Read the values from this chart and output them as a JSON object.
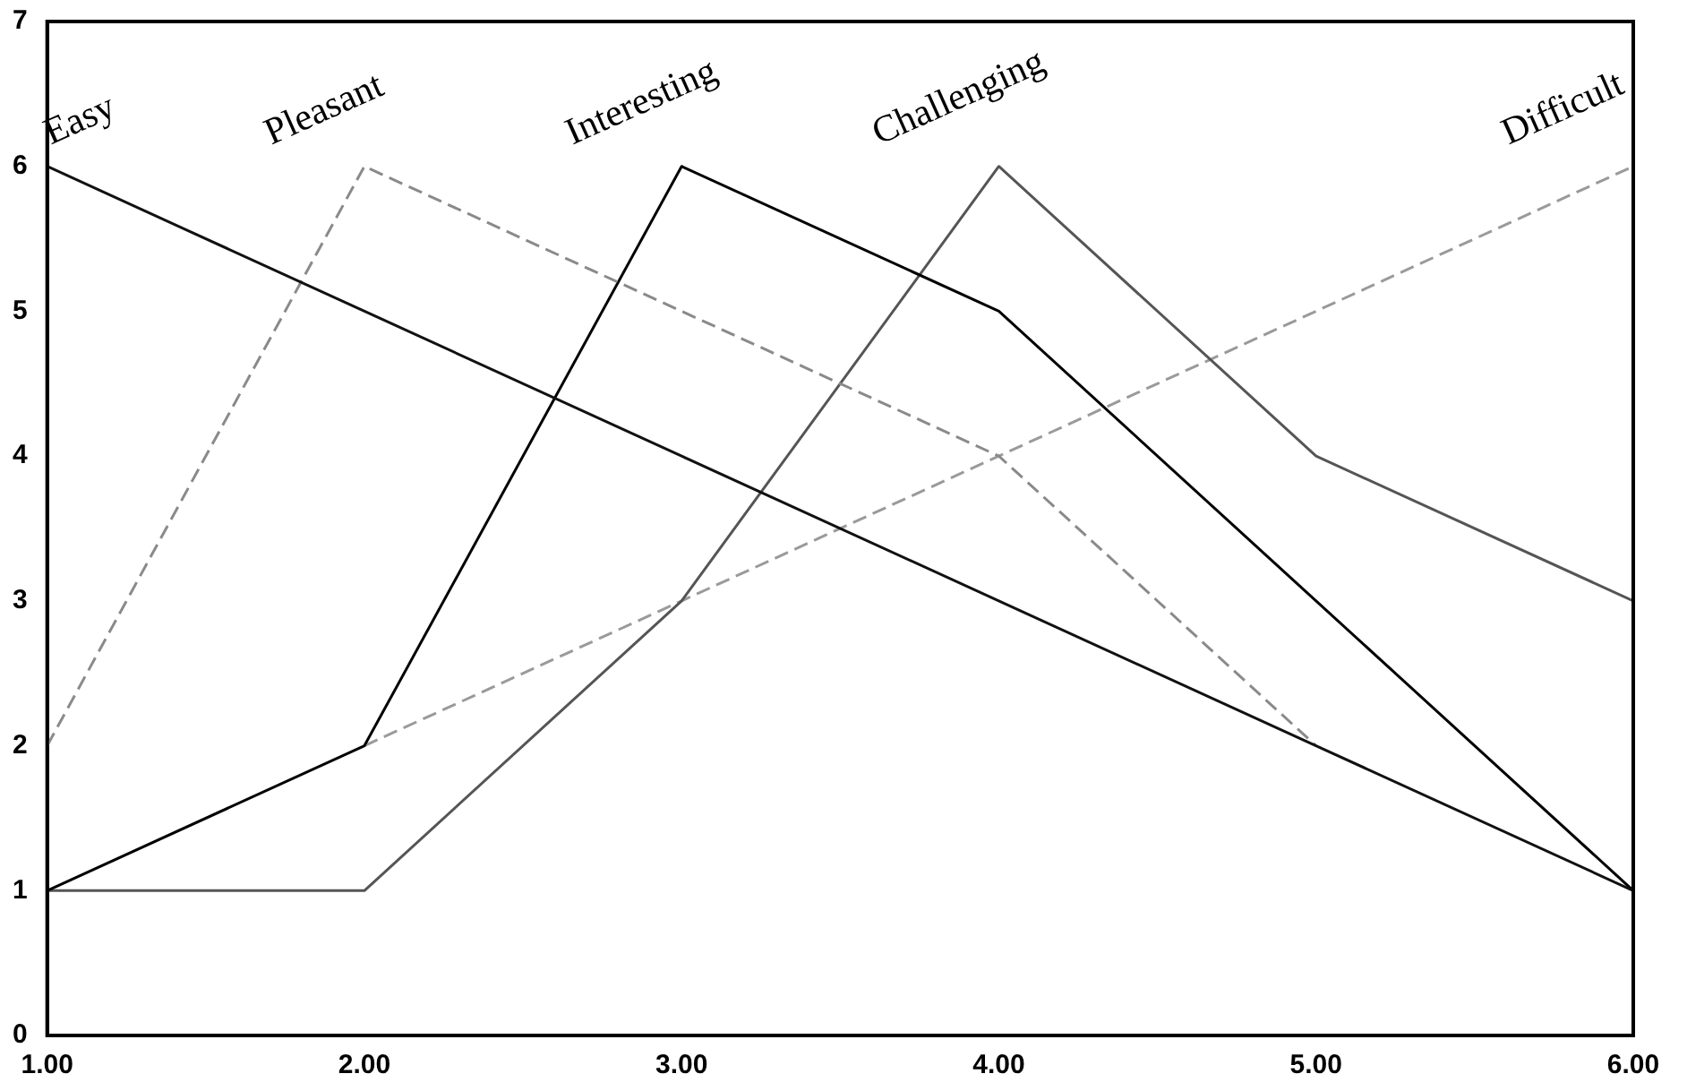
{
  "chart_data": {
    "type": "line",
    "x": [
      1,
      2,
      3,
      4,
      5,
      6
    ],
    "series": [
      {
        "name": "Easy",
        "color": "#111111",
        "line_style": "solid",
        "values": [
          6,
          5,
          4,
          3,
          2,
          1
        ]
      },
      {
        "name": "Pleasant",
        "color": "#8a8a8a",
        "line_style": "dashed",
        "values": [
          2,
          6,
          5,
          4,
          2,
          null
        ]
      },
      {
        "name": "Interesting",
        "color": "#000000",
        "line_style": "solid",
        "values": [
          1,
          2,
          6,
          5,
          3,
          1
        ]
      },
      {
        "name": "Challenging",
        "color": "#555555",
        "line_style": "solid",
        "values": [
          1,
          1,
          3,
          6,
          4,
          3
        ]
      },
      {
        "name": "Difficult",
        "color": "#9a9a9a",
        "line_style": "dashed",
        "values": [
          null,
          2,
          3,
          4,
          5,
          6
        ]
      }
    ],
    "xlim": [
      1,
      6
    ],
    "xticks": [
      {
        "value": 1,
        "label": "1.00"
      },
      {
        "value": 2,
        "label": "2.00"
      },
      {
        "value": 3,
        "label": "3.00"
      },
      {
        "value": 4,
        "label": "4.00"
      },
      {
        "value": 5,
        "label": "5.00"
      },
      {
        "value": 6,
        "label": "6.00"
      }
    ],
    "ylim": [
      0,
      7
    ],
    "yticks": [
      0,
      1,
      2,
      3,
      4,
      5,
      6,
      7
    ],
    "grid": false,
    "legend": false,
    "marker": "none"
  }
}
